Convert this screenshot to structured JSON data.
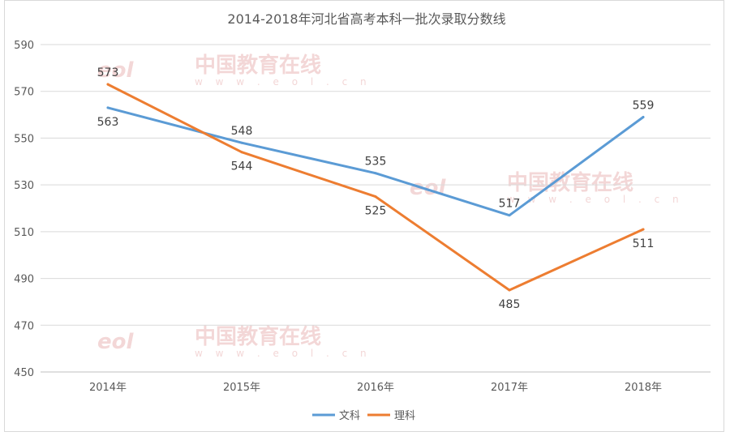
{
  "chart_data": {
    "type": "line",
    "title": "2014-2018年河北省高考本科一批次录取分数线",
    "categories": [
      "2014年",
      "2015年",
      "2016年",
      "2017年",
      "2018年"
    ],
    "series": [
      {
        "name": "文科",
        "values": [
          563,
          548,
          535,
          517,
          559
        ],
        "color": "#5b9bd5"
      },
      {
        "name": "理科",
        "values": [
          573,
          544,
          525,
          485,
          511
        ],
        "color": "#ed7d31"
      }
    ],
    "ylim": [
      450,
      590
    ],
    "yticks": [
      "450",
      "470",
      "490",
      "510",
      "530",
      "550",
      "570",
      "590"
    ],
    "grid": true,
    "legend_position": "bottom"
  },
  "watermark": {
    "logo": "eol",
    "brand": "中国教育在线",
    "url": "w w w . e o l . c n"
  }
}
